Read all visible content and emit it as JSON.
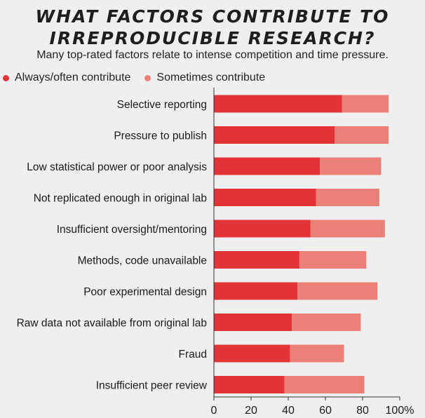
{
  "header": {
    "title_line1": "WHAT FACTORS CONTRIBUTE TO",
    "title_line2": "IRREPRODUCIBLE RESEARCH?",
    "subtitle": "Many top-rated factors relate to intense competition and time pressure."
  },
  "legend": {
    "always": "Always/often contribute",
    "sometimes": "Sometimes contribute"
  },
  "colors": {
    "always": "#e23437",
    "sometimes": "#eb8079",
    "background": "#efefef",
    "axis": "#333333"
  },
  "chart_data": {
    "type": "bar",
    "orientation": "horizontal",
    "stacked": true,
    "title": "WHAT FACTORS CONTRIBUTE TO IRREPRODUCIBLE RESEARCH?",
    "subtitle": "Many top-rated factors relate to intense competition and time pressure.",
    "categories": [
      "Selective reporting",
      "Pressure to publish",
      "Low statistical power or poor analysis",
      "Not replicated enough in original lab",
      "Insufficient oversight/mentoring",
      "Methods, code unavailable",
      "Poor experimental design",
      "Raw data not available from original lab",
      "Fraud",
      "Insufficient peer review"
    ],
    "series": [
      {
        "name": "Always/often contribute",
        "values": [
          69,
          65,
          57,
          55,
          52,
          46,
          45,
          42,
          41,
          38
        ]
      },
      {
        "name": "Sometimes contribute",
        "values": [
          25,
          29,
          33,
          34,
          40,
          36,
          43,
          37,
          29,
          43
        ]
      }
    ],
    "xlim": [
      0,
      100
    ],
    "xticks": [
      0,
      20,
      40,
      60,
      80,
      100
    ],
    "xtick_labels": [
      "0",
      "20",
      "40",
      "60",
      "80",
      "100%"
    ],
    "legend_position": "top-left",
    "grid": false
  }
}
